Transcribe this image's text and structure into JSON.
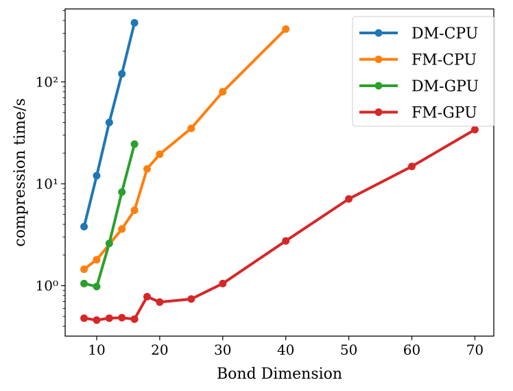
{
  "chart_data": {
    "type": "line",
    "title": "",
    "xlabel": "Bond Dimension",
    "ylabel": "compression time/s",
    "yscale": "log",
    "xlim": [
      5,
      73
    ],
    "ylim": [
      0.32,
      520
    ],
    "xticks": [
      10,
      20,
      30,
      40,
      50,
      60,
      70
    ],
    "xtick_labels": [
      "10",
      "20",
      "30",
      "40",
      "50",
      "60",
      "70"
    ],
    "yticks": [
      1,
      10,
      100
    ],
    "ytick_labels": [
      "10⁰",
      "10¹",
      "10²"
    ],
    "grid": false,
    "legend_position": "top-right",
    "series": [
      {
        "name": "DM-CPU",
        "color": "#1f77b4",
        "x": [
          8,
          10,
          12,
          14,
          16
        ],
        "y": [
          3.8,
          12,
          40,
          120,
          380
        ]
      },
      {
        "name": "FM-CPU",
        "color": "#ff7f0e",
        "x": [
          8,
          10,
          14,
          16,
          18,
          20,
          25,
          30,
          40
        ],
        "y": [
          1.45,
          1.8,
          3.6,
          5.5,
          14,
          19.5,
          35,
          80,
          330
        ]
      },
      {
        "name": "DM-GPU",
        "color": "#2ca02c",
        "x": [
          8,
          10,
          12,
          14,
          16
        ],
        "y": [
          1.05,
          0.98,
          2.6,
          8.3,
          24.5
        ]
      },
      {
        "name": "FM-GPU",
        "color": "#d62728",
        "x": [
          8,
          10,
          12,
          14,
          16,
          18,
          20,
          25,
          30,
          40,
          50,
          60,
          70
        ],
        "y": [
          0.48,
          0.46,
          0.48,
          0.485,
          0.47,
          0.78,
          0.69,
          0.74,
          1.05,
          2.75,
          7.1,
          14.8,
          34
        ]
      }
    ]
  }
}
